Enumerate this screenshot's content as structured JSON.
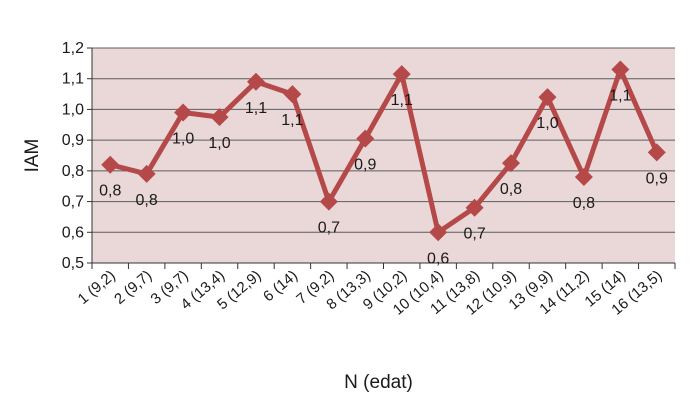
{
  "chart_data": {
    "type": "line",
    "title": "",
    "xlabel": "N (edat)",
    "ylabel": "IAM",
    "ylim": [
      0.5,
      1.2
    ],
    "yticks": [
      "0,5",
      "0,6",
      "0,7",
      "0,8",
      "0,9",
      "1,0",
      "1,1",
      "1,2"
    ],
    "grid": true,
    "categories": [
      "1 (9,2)",
      "2 (9,7)",
      "3 (9,7)",
      "4 (13,4)",
      "5 (12,9)",
      "6 (14)",
      "7 (9,2)",
      "8 (13,3)",
      "9 (10,2)",
      "10 (10,4)",
      "11 (13,8)",
      "12 (10,9)",
      "13 (9,9)",
      "14 (11,2)",
      "15 (14)",
      "16 (13,5)"
    ],
    "series": [
      {
        "values": [
          0.82,
          0.79,
          0.99,
          0.975,
          1.09,
          1.05,
          0.7,
          0.905,
          1.115,
          0.6,
          0.68,
          0.825,
          1.04,
          0.78,
          1.13,
          0.86
        ],
        "data_labels": [
          "0,8",
          "0,8",
          "1,0",
          "1,0",
          "1,1",
          "1,1",
          "0,7",
          "0,9",
          "1,1",
          "0,6",
          "0,7",
          "0,8",
          "1,0",
          "0,8",
          "1,1",
          "0,9"
        ]
      }
    ],
    "colors": {
      "line": "#b5494a",
      "plot_background": "#ead7d7",
      "gridline": "#5c5c5c"
    }
  }
}
